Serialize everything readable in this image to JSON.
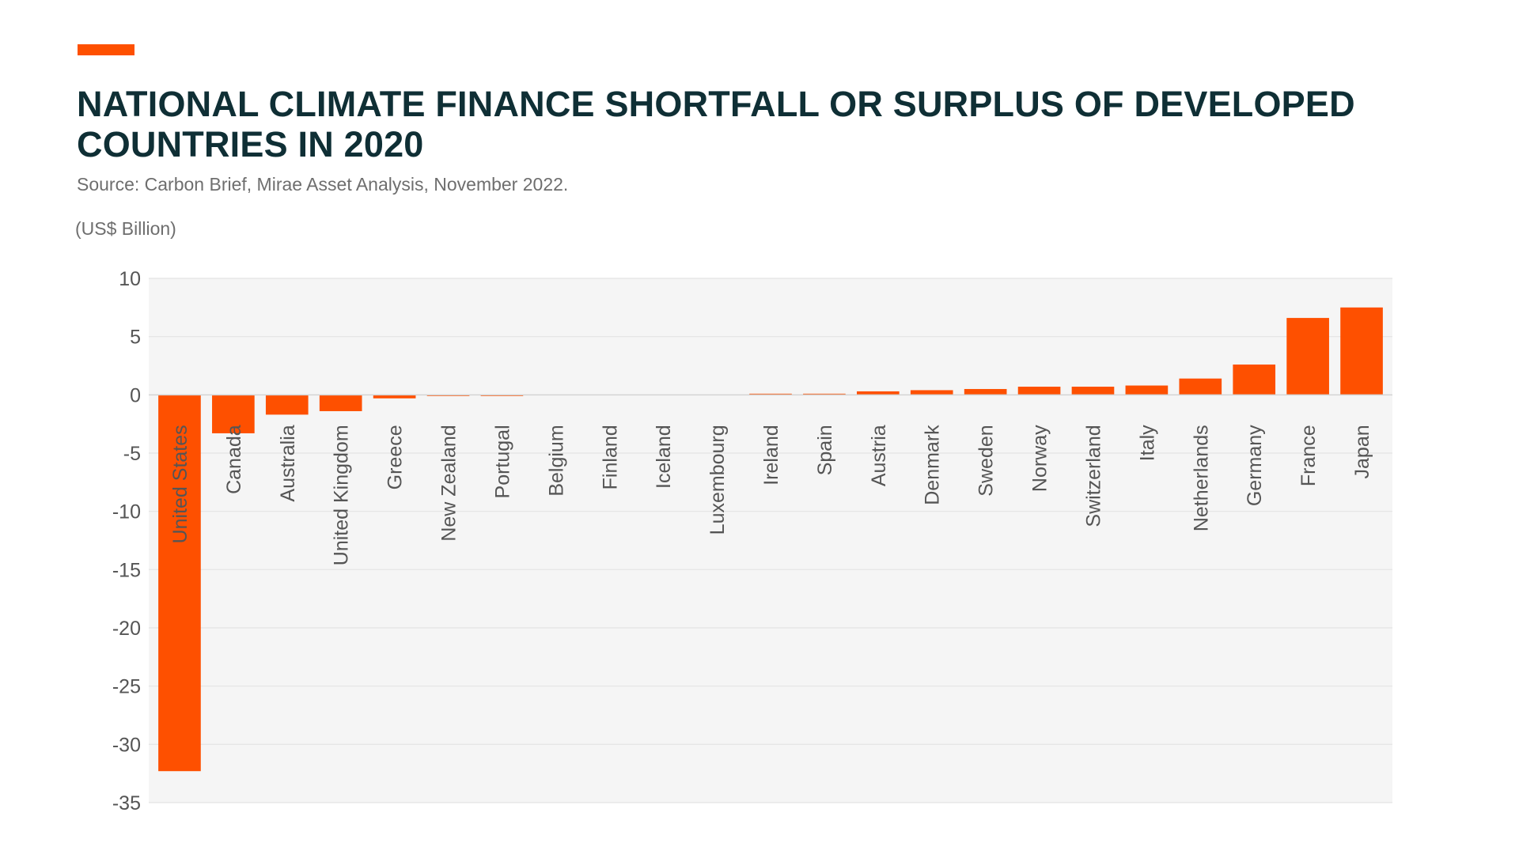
{
  "header": {
    "title": "NATIONAL CLIMATE FINANCE SHORTFALL OR SURPLUS OF DEVELOPED COUNTRIES IN 2020",
    "source": "Source: Carbon Brief, Mirae Asset Analysis, November 2022.",
    "unit_label": "(US$ Billion)"
  },
  "colors": {
    "accent": "#fe5000",
    "bar": "#fe5000",
    "title": "#0f2f35",
    "plot_background": "#f5f5f5",
    "gridline": "#e3e3e3",
    "tick_text": "#555555",
    "category_text": "#555555"
  },
  "chart_data": {
    "type": "bar",
    "title": "NATIONAL CLIMATE FINANCE SHORTFALL OR SURPLUS OF DEVELOPED COUNTRIES IN 2020",
    "ylabel": "(US$ Billion)",
    "xlabel": "",
    "ylim": [
      -35,
      10
    ],
    "yticks": [
      10,
      5,
      0,
      -5,
      -10,
      -15,
      -20,
      -25,
      -30,
      -35
    ],
    "ytick_labels": [
      "10",
      "5",
      "0",
      "-5",
      "-10",
      "-15",
      "-20",
      "-25",
      "-30",
      "-35"
    ],
    "grid": true,
    "legend": "none",
    "categories": [
      "United States",
      "Canada",
      "Australia",
      "United Kingdom",
      "Greece",
      "New Zealand",
      "Portugal",
      "Belgium",
      "Finland",
      "Iceland",
      "Luxembourg",
      "Ireland",
      "Spain",
      "Austria",
      "Denmark",
      "Sweden",
      "Norway",
      "Switzerland",
      "Italy",
      "Netherlands",
      "Germany",
      "France",
      "Japan"
    ],
    "values": [
      -32.3,
      -3.3,
      -1.7,
      -1.4,
      -0.3,
      -0.1,
      -0.1,
      0.0,
      0.0,
      0.0,
      0.0,
      0.1,
      0.1,
      0.3,
      0.4,
      0.5,
      0.7,
      0.7,
      0.8,
      1.4,
      2.6,
      6.6,
      7.5
    ]
  }
}
